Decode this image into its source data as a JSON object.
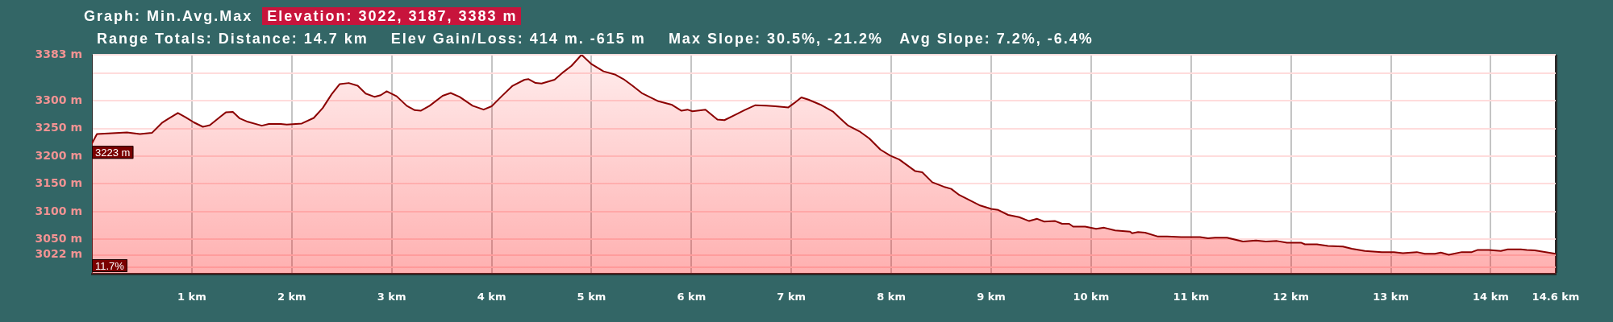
{
  "chart_data": {
    "type": "area",
    "title": "Graph: Min.Avg.Max",
    "subtitle": "Range Totals: Distance: 14.7 km    Elev Gain/Loss: 414 m. -615 m    Max Slope: 30.5%, -21.2%   Avg Slope: 7.2%, -6.4%",
    "annotations": [
      "Elevation: 3022, 3187, 3383 m",
      {
        "text": "3223 m",
        "x": 0,
        "y": 3223
      },
      {
        "text": "11.7%",
        "x": 0
      }
    ],
    "x": [
      0,
      0.05,
      0.35,
      0.48,
      0.6,
      0.7,
      0.76,
      0.86,
      0.94,
      1.02,
      1.11,
      1.18,
      1.29,
      1.34,
      1.41,
      1.48,
      1.56,
      1.7,
      1.77,
      1.89,
      1.95,
      2.1,
      2.22,
      2.31,
      2.4,
      2.48,
      2.57,
      2.66,
      2.74,
      2.83,
      2.89,
      2.95,
      3.05,
      3.15,
      3.23,
      3.29,
      3.38,
      3.51,
      3.59,
      3.68,
      3.81,
      3.92,
      4.0,
      4.1,
      4.21,
      4.33,
      4.37,
      4.44,
      4.5,
      4.63,
      4.72,
      4.8,
      4.9,
      5.0,
      5.12,
      5.24,
      5.32,
      5.41,
      5.51,
      5.67,
      5.8,
      5.9,
      5.96,
      6.01,
      6.14,
      6.26,
      6.33,
      6.43,
      6.53,
      6.64,
      6.75,
      6.84,
      6.97,
      7.03,
      7.1,
      7.17,
      7.29,
      7.42,
      7.49,
      7.57,
      7.68,
      7.78,
      7.89,
      7.99,
      8.08,
      8.24,
      8.31,
      8.41,
      8.54,
      8.6,
      8.68,
      8.89,
      9.0,
      9.07,
      9.17,
      9.28,
      9.38,
      9.46,
      9.53,
      9.64,
      9.71,
      9.78,
      9.82,
      9.94,
      10.05,
      10.13,
      10.24,
      10.39,
      10.41,
      10.47,
      10.54,
      10.67,
      10.76,
      10.9,
      11.02,
      11.09,
      11.17,
      11.24,
      11.36,
      11.52,
      11.65,
      11.75,
      11.86,
      11.96,
      12.1,
      12.14,
      12.26,
      12.37,
      12.52,
      12.61,
      12.74,
      12.91,
      13.03,
      13.12,
      13.26,
      13.34,
      13.44,
      13.5,
      13.58,
      13.71,
      13.81,
      13.87,
      13.98,
      14.1,
      14.17,
      14.3,
      14.36,
      14.44,
      14.65
    ],
    "values": [
      3223,
      3240,
      3243,
      3240,
      3242,
      3260,
      3267,
      3278,
      3270,
      3261,
      3253,
      3256,
      3272,
      3279,
      3280,
      3268,
      3262,
      3255,
      3258,
      3258,
      3257,
      3259,
      3269,
      3287,
      3312,
      3330,
      3332,
      3327,
      3313,
      3307,
      3310,
      3317,
      3308,
      3291,
      3283,
      3282,
      3291,
      3309,
      3314,
      3307,
      3291,
      3284,
      3290,
      3308,
      3327,
      3338,
      3339,
      3332,
      3331,
      3338,
      3352,
      3363,
      3383,
      3366,
      3353,
      3347,
      3339,
      3327,
      3313,
      3299,
      3293,
      3282,
      3284,
      3281,
      3284,
      3266,
      3265,
      3274,
      3283,
      3292,
      3291,
      3290,
      3288,
      3296,
      3306,
      3302,
      3293,
      3280,
      3268,
      3255,
      3245,
      3232,
      3212,
      3201,
      3194,
      3173,
      3171,
      3153,
      3144,
      3141,
      3130,
      3111,
      3105,
      3103,
      3094,
      3090,
      3083,
      3087,
      3082,
      3083,
      3078,
      3078,
      3073,
      3073,
      3069,
      3071,
      3066,
      3064,
      3061,
      3063,
      3062,
      3055,
      3055,
      3054,
      3054,
      3054,
      3052,
      3053,
      3053,
      3046,
      3048,
      3046,
      3047,
      3044,
      3044,
      3041,
      3041,
      3038,
      3037,
      3033,
      3029,
      3027,
      3027,
      3025,
      3027,
      3024,
      3024,
      3026,
      3022,
      3027,
      3027,
      3031,
      3031,
      3029,
      3032,
      3032,
      3031,
      3030,
      3024
    ],
    "color": "#8b0000",
    "marker": "none",
    "xlim": [
      0,
      14.65
    ],
    "xticks": [
      {
        "value": 1,
        "label": "1 km"
      },
      {
        "value": 2,
        "label": "2 km"
      },
      {
        "value": 3,
        "label": "3 km"
      },
      {
        "value": 4,
        "label": "4 km"
      },
      {
        "value": 5,
        "label": "5 km"
      },
      {
        "value": 6,
        "label": "6 km"
      },
      {
        "value": 7,
        "label": "7 km"
      },
      {
        "value": 8,
        "label": "8 km"
      },
      {
        "value": 9,
        "label": "9 km"
      },
      {
        "value": 10,
        "label": "10 km"
      },
      {
        "value": 11,
        "label": "11 km"
      },
      {
        "value": 12,
        "label": "12 km"
      },
      {
        "value": 13,
        "label": "13 km"
      },
      {
        "value": 14,
        "label": "14 km"
      },
      {
        "value": 14.65,
        "label": "14.6 km"
      }
    ],
    "ylim": [
      2988,
      3383
    ],
    "yticks": [
      {
        "value": 3383,
        "label": "3383 m"
      },
      {
        "value": 3350,
        "label": null
      },
      {
        "value": 3300,
        "label": "3300 m"
      },
      {
        "value": 3250,
        "label": "3250 m"
      },
      {
        "value": 3200,
        "label": "3200 m"
      },
      {
        "value": 3150,
        "label": "3150 m"
      },
      {
        "value": 3100,
        "label": "3100 m"
      },
      {
        "value": 3050,
        "label": "3050 m"
      },
      {
        "value": 3022,
        "label": "3022 m"
      },
      {
        "value": 3000,
        "label": null
      }
    ],
    "grid": true
  }
}
